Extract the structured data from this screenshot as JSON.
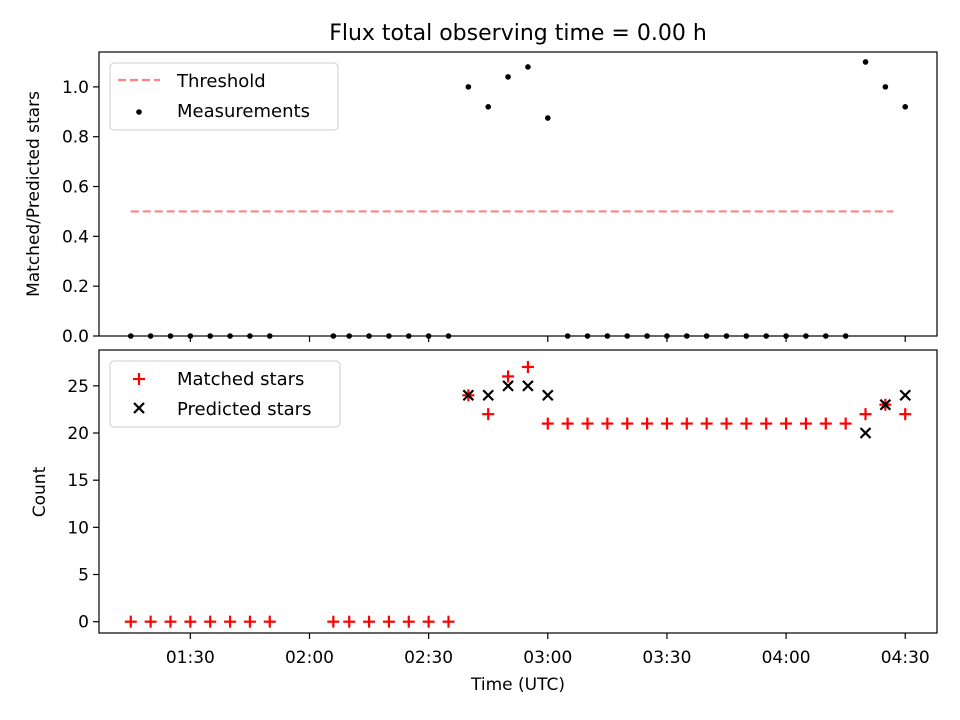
{
  "title": "Flux total observing time = 0.00 h",
  "chart_data": [
    {
      "type": "scatter",
      "ylabel": "Matched/Predicted stars",
      "ylim": [
        0,
        1.14
      ],
      "yticks": [
        0.0,
        0.2,
        0.4,
        0.6,
        0.8,
        1.0
      ],
      "ytick_labels": [
        "0.0",
        "0.2",
        "0.4",
        "0.6",
        "0.8",
        "1.0"
      ],
      "legend_position": "top-left",
      "threshold": {
        "name": "Threshold",
        "value": 0.5,
        "x_range": [
          "01:15",
          "04:27"
        ],
        "color": "#ff8080"
      },
      "series": [
        {
          "name": "Measurements",
          "color": "#000000",
          "points": [
            [
              "01:15",
              0
            ],
            [
              "01:20",
              0
            ],
            [
              "01:25",
              0
            ],
            [
              "01:30",
              0
            ],
            [
              "01:35",
              0
            ],
            [
              "01:40",
              0
            ],
            [
              "01:45",
              0
            ],
            [
              "01:50",
              0
            ],
            [
              "02:06",
              0
            ],
            [
              "02:10",
              0
            ],
            [
              "02:15",
              0
            ],
            [
              "02:20",
              0
            ],
            [
              "02:25",
              0
            ],
            [
              "02:30",
              0
            ],
            [
              "02:35",
              0
            ],
            [
              "02:40",
              1.0
            ],
            [
              "02:45",
              0.92
            ],
            [
              "02:50",
              1.04
            ],
            [
              "02:55",
              1.08
            ],
            [
              "03:00",
              0.875
            ],
            [
              "03:05",
              0
            ],
            [
              "03:10",
              0
            ],
            [
              "03:15",
              0
            ],
            [
              "03:20",
              0
            ],
            [
              "03:25",
              0
            ],
            [
              "03:30",
              0
            ],
            [
              "03:35",
              0
            ],
            [
              "03:40",
              0
            ],
            [
              "03:45",
              0
            ],
            [
              "03:50",
              0
            ],
            [
              "03:55",
              0
            ],
            [
              "04:00",
              0
            ],
            [
              "04:05",
              0
            ],
            [
              "04:10",
              0
            ],
            [
              "04:15",
              0
            ],
            [
              "04:20",
              1.1
            ],
            [
              "04:25",
              1.0
            ],
            [
              "04:30",
              0.92
            ]
          ]
        }
      ]
    },
    {
      "type": "scatter",
      "xlabel": "Time (UTC)",
      "ylabel": "Count",
      "ylim": [
        -1.2,
        28.8
      ],
      "yticks": [
        0,
        5,
        10,
        15,
        20,
        25
      ],
      "ytick_labels": [
        "0",
        "5",
        "10",
        "15",
        "20",
        "25"
      ],
      "xlim": [
        "01:07",
        "04:38"
      ],
      "xticks": [
        "01:30",
        "02:00",
        "02:30",
        "03:00",
        "03:30",
        "04:00",
        "04:30"
      ],
      "legend_position": "top-left",
      "series": [
        {
          "name": "Matched stars",
          "marker": "plus",
          "color": "#ff0000",
          "points": [
            [
              "01:15",
              0
            ],
            [
              "01:20",
              0
            ],
            [
              "01:25",
              0
            ],
            [
              "01:30",
              0
            ],
            [
              "01:35",
              0
            ],
            [
              "01:40",
              0
            ],
            [
              "01:45",
              0
            ],
            [
              "01:50",
              0
            ],
            [
              "02:06",
              0
            ],
            [
              "02:10",
              0
            ],
            [
              "02:15",
              0
            ],
            [
              "02:20",
              0
            ],
            [
              "02:25",
              0
            ],
            [
              "02:30",
              0
            ],
            [
              "02:35",
              0
            ],
            [
              "02:40",
              24
            ],
            [
              "02:45",
              22
            ],
            [
              "02:50",
              26
            ],
            [
              "02:55",
              27
            ],
            [
              "03:00",
              21
            ],
            [
              "03:05",
              21
            ],
            [
              "03:10",
              21
            ],
            [
              "03:15",
              21
            ],
            [
              "03:20",
              21
            ],
            [
              "03:25",
              21
            ],
            [
              "03:30",
              21
            ],
            [
              "03:35",
              21
            ],
            [
              "03:40",
              21
            ],
            [
              "03:45",
              21
            ],
            [
              "03:50",
              21
            ],
            [
              "03:55",
              21
            ],
            [
              "04:00",
              21
            ],
            [
              "04:05",
              21
            ],
            [
              "04:10",
              21
            ],
            [
              "04:15",
              21
            ],
            [
              "04:20",
              22
            ],
            [
              "04:25",
              23
            ],
            [
              "04:30",
              22
            ]
          ]
        },
        {
          "name": "Predicted stars",
          "marker": "x",
          "color": "#000000",
          "points": [
            [
              "02:40",
              24
            ],
            [
              "02:45",
              24
            ],
            [
              "02:50",
              25
            ],
            [
              "02:55",
              25
            ],
            [
              "03:00",
              24
            ],
            [
              "04:20",
              20
            ],
            [
              "04:25",
              23
            ],
            [
              "04:30",
              24
            ]
          ]
        }
      ]
    }
  ]
}
